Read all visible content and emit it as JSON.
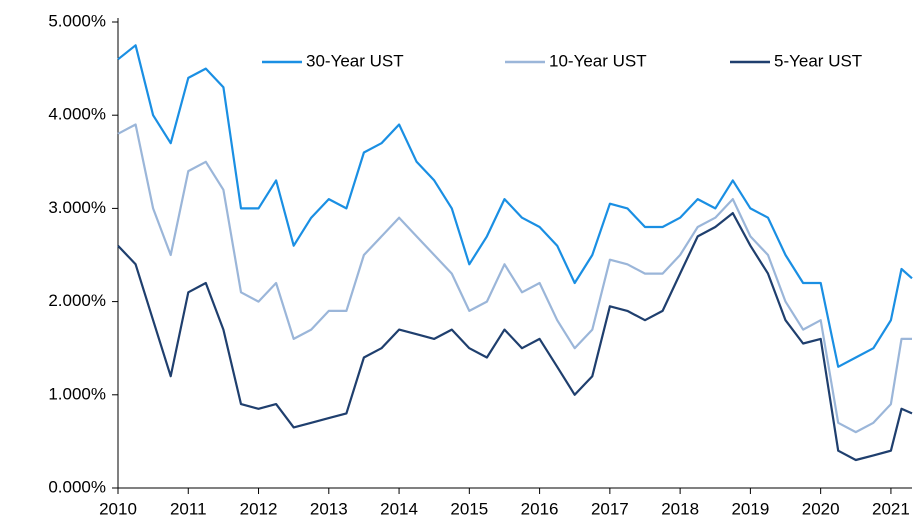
{
  "chart_data": {
    "type": "line",
    "x": [
      2010,
      2010.25,
      2010.5,
      2010.75,
      2011,
      2011.25,
      2011.5,
      2011.75,
      2012,
      2012.25,
      2012.5,
      2012.75,
      2013,
      2013.25,
      2013.5,
      2013.75,
      2014,
      2014.25,
      2014.5,
      2014.75,
      2015,
      2015.25,
      2015.5,
      2015.75,
      2016,
      2016.25,
      2016.5,
      2016.75,
      2017,
      2017.25,
      2017.5,
      2017.75,
      2018,
      2018.25,
      2018.5,
      2018.75,
      2019,
      2019.25,
      2019.5,
      2019.75,
      2020,
      2020.25,
      2020.5,
      2020.75,
      2021,
      2021.15,
      2021.3
    ],
    "series": [
      {
        "name": "30-Year UST",
        "color": "#1a8fe3",
        "values": [
          4.6,
          4.75,
          4.0,
          3.7,
          4.4,
          4.5,
          4.3,
          3.0,
          3.0,
          3.3,
          2.6,
          2.9,
          3.1,
          3.0,
          3.6,
          3.7,
          3.9,
          3.5,
          3.3,
          3.0,
          2.4,
          2.7,
          3.1,
          2.9,
          2.8,
          2.6,
          2.2,
          2.5,
          3.05,
          3.0,
          2.8,
          2.8,
          2.9,
          3.1,
          3.0,
          3.3,
          3.0,
          2.9,
          2.5,
          2.2,
          2.2,
          1.3,
          1.4,
          1.5,
          1.8,
          2.35,
          2.25
        ]
      },
      {
        "name": "10-Year UST",
        "color": "#9bb6d9",
        "values": [
          3.8,
          3.9,
          3.0,
          2.5,
          3.4,
          3.5,
          3.2,
          2.1,
          2.0,
          2.2,
          1.6,
          1.7,
          1.9,
          1.9,
          2.5,
          2.7,
          2.9,
          2.7,
          2.5,
          2.3,
          1.9,
          2.0,
          2.4,
          2.1,
          2.2,
          1.8,
          1.5,
          1.7,
          2.45,
          2.4,
          2.3,
          2.3,
          2.5,
          2.8,
          2.9,
          3.1,
          2.7,
          2.5,
          2.0,
          1.7,
          1.8,
          0.7,
          0.6,
          0.7,
          0.9,
          1.6,
          1.6
        ]
      },
      {
        "name": "5-Year UST",
        "color": "#1f3f6e",
        "values": [
          2.6,
          2.4,
          1.8,
          1.2,
          2.1,
          2.2,
          1.7,
          0.9,
          0.85,
          0.9,
          0.65,
          0.7,
          0.75,
          0.8,
          1.4,
          1.5,
          1.7,
          1.65,
          1.6,
          1.7,
          1.5,
          1.4,
          1.7,
          1.5,
          1.6,
          1.3,
          1.0,
          1.2,
          1.95,
          1.9,
          1.8,
          1.9,
          2.3,
          2.7,
          2.8,
          2.95,
          2.6,
          2.3,
          1.8,
          1.55,
          1.6,
          0.4,
          0.3,
          0.35,
          0.4,
          0.85,
          0.8
        ]
      }
    ],
    "xlim": [
      2010,
      2021.3
    ],
    "xticks": [
      2010,
      2011,
      2012,
      2013,
      2014,
      2015,
      2016,
      2017,
      2018,
      2019,
      2020,
      2021
    ],
    "ylim": [
      0,
      5
    ],
    "yticks": [
      {
        "value": 0,
        "label": "0.000%"
      },
      {
        "value": 1,
        "label": "1.000%"
      },
      {
        "value": 2,
        "label": "2.000%"
      },
      {
        "value": 3,
        "label": "3.000%"
      },
      {
        "value": 4,
        "label": "4.000%"
      },
      {
        "value": 5,
        "label": "5.000%"
      }
    ],
    "grid": false,
    "legend": "top"
  }
}
